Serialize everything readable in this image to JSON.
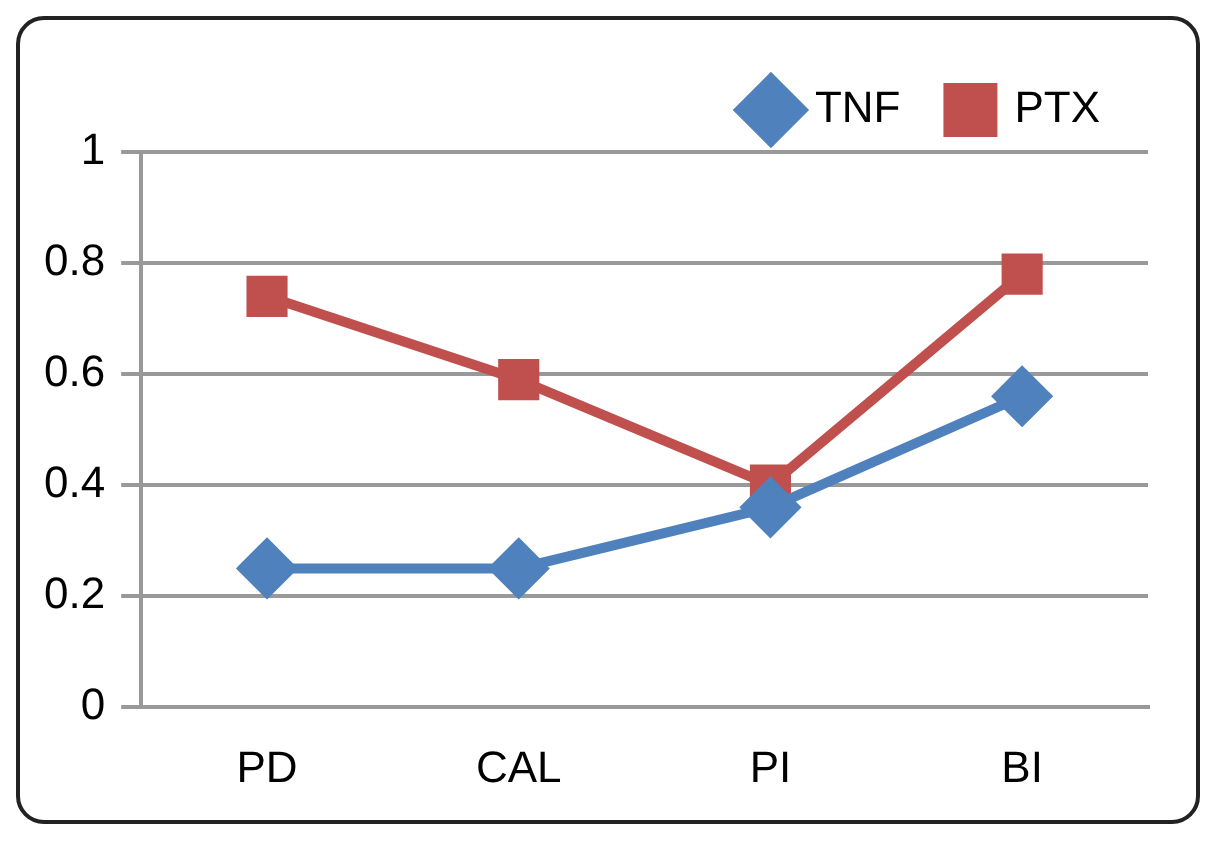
{
  "chart_data": {
    "type": "line",
    "categories": [
      "PD",
      "CAL",
      "PI",
      "BI"
    ],
    "series": [
      {
        "name": "TNF",
        "color": "#4f81bd",
        "marker": "diamond",
        "values": [
          0.25,
          0.25,
          0.36,
          0.56
        ]
      },
      {
        "name": "PTX",
        "color": "#c0504d",
        "marker": "square",
        "values": [
          0.74,
          0.59,
          0.4,
          0.78
        ]
      }
    ],
    "ylim": [
      0,
      1
    ],
    "yticks": [
      0,
      0.2,
      0.4,
      0.6,
      0.8,
      1
    ],
    "grid": "y",
    "legend": "top right"
  }
}
